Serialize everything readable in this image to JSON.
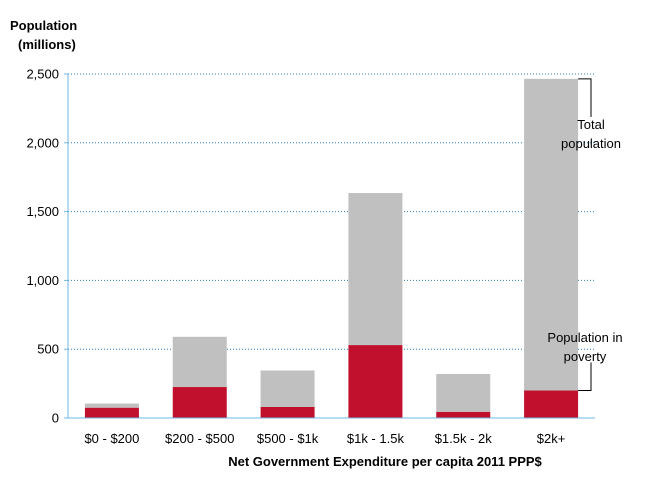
{
  "chart_data": {
    "type": "bar",
    "stacked": true,
    "ylabel": [
      "Population",
      "(millions)"
    ],
    "xlabel": "Net Government Expenditure per capita 2011 PPP$",
    "categories": [
      "$0 - $200",
      "$200 - $500",
      "$500 - $1k",
      "$1k - 1.5k",
      "$1.5k - 2k",
      "$2k+"
    ],
    "ylim": [
      0,
      2500
    ],
    "yticks": [
      0,
      500,
      1000,
      1500,
      2000,
      2500
    ],
    "ytick_labels": [
      "0",
      "500",
      "1,000",
      "1,500",
      "2,000",
      "2,500"
    ],
    "grid": true,
    "total_population": [
      105,
      590,
      345,
      1635,
      320,
      2465
    ],
    "series": [
      {
        "values": [
          75,
          225,
          80,
          530,
          45,
          200
        ],
        "color": "#c0102e"
      },
      {
        "values": [
          30,
          365,
          265,
          1105,
          275,
          2265
        ],
        "color": "#c0c0c0"
      }
    ],
    "annotations": [
      {
        "lines": [
          "Total",
          "population"
        ],
        "anchor": "total"
      },
      {
        "lines": [
          "Population in",
          "poverty"
        ],
        "anchor": "poverty"
      }
    ]
  }
}
